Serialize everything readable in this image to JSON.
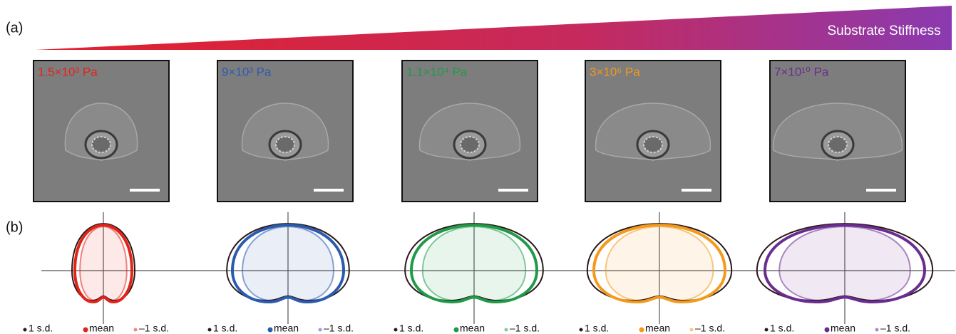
{
  "figure": {
    "panel_a_label": "(a)",
    "panel_b_label": "(b)",
    "gradient_label": "Substrate Stiffness",
    "conditions": [
      {
        "label": "1.5×10³ Pa",
        "color": "#e2231a",
        "legend": [
          "1 s.d.",
          "mean",
          "–1 s.d."
        ]
      },
      {
        "label": "9×10³ Pa",
        "color": "#2c5aae",
        "legend": [
          "1 s.d.",
          "mean",
          "–1 s.d."
        ]
      },
      {
        "label": "1.1×10⁴ Pa",
        "color": "#1f9a48",
        "legend": [
          "1 s.d.",
          "mean",
          "–1 s.d."
        ]
      },
      {
        "label": "3×10⁶ Pa",
        "color": "#f39a1c",
        "legend": [
          "1 s.d.",
          "mean",
          "–1 s.d."
        ]
      },
      {
        "label": "7×10¹⁰ Pa",
        "color": "#6b2c91",
        "legend": [
          "1 s.d.",
          "mean",
          "–1 s.d."
        ]
      }
    ]
  }
}
